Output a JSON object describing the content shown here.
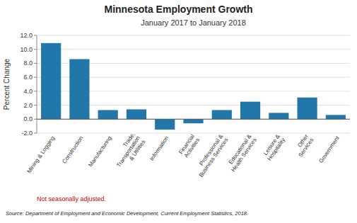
{
  "chart_data": {
    "type": "bar",
    "title": "Minnesota Employment Growth",
    "subtitle": "January 2017 to January 2018",
    "categories": [
      "Mining & Logging",
      "Construction",
      "Manufacturing",
      "Trade,\nTransportation\n& Utilities",
      "Information",
      "Financial\nActivities",
      "Professional &\nBusiness Services",
      "Educational &\nHealth Services",
      "Leisure &\nHospitality",
      "Other\nServices",
      "Government"
    ],
    "values": [
      10.9,
      8.6,
      1.3,
      1.4,
      -1.5,
      -0.6,
      1.3,
      2.5,
      0.9,
      3.1,
      0.6
    ],
    "color": "#2277aa",
    "ylim": [
      -2.0,
      12.0
    ],
    "yticks": [
      {
        "value": -2.0,
        "label": "-2.0"
      },
      {
        "value": 0.0,
        "label": "0.0"
      },
      {
        "value": 2.0,
        "label": "2.0"
      },
      {
        "value": 4.0,
        "label": "4.0"
      },
      {
        "value": 6.0,
        "label": "6.0"
      },
      {
        "value": 8.0,
        "label": "8.0"
      },
      {
        "value": 10.0,
        "label": "10.0"
      },
      {
        "value": 12.0,
        "label": "12.0"
      }
    ],
    "ylabel": "Percent Change",
    "grid": true,
    "annotations": [
      {
        "text": "Not seasonally adjusted.",
        "color": "#cc0000"
      },
      {
        "text": "Source: Department of Employment and Economic Development, Current  Employment Statistics, 2018."
      }
    ]
  }
}
